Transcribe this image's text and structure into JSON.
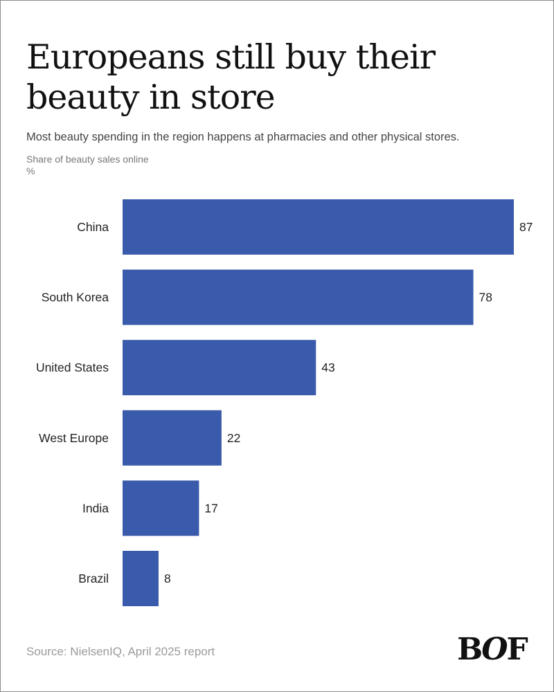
{
  "title": "Europeans still buy their beauty in store",
  "subtitle": "Most beauty spending in the region happens at pharmacies and other physical stores.",
  "source": "Source: NielsenIQ, April 2025 report",
  "logo": "BOF",
  "colors": {
    "bar": "#3a5bab"
  },
  "chart_data": {
    "type": "bar",
    "orientation": "horizontal",
    "title": "Europeans still buy their beauty in store",
    "ylabel": "Share of beauty sales online",
    "unit": "%",
    "categories": [
      "China",
      "South Korea",
      "United States",
      "West Europe",
      "India",
      "Brazil"
    ],
    "values": [
      87,
      78,
      43,
      22,
      17,
      8
    ],
    "xlim": [
      0,
      87
    ],
    "grid": false,
    "data_labels": true
  }
}
